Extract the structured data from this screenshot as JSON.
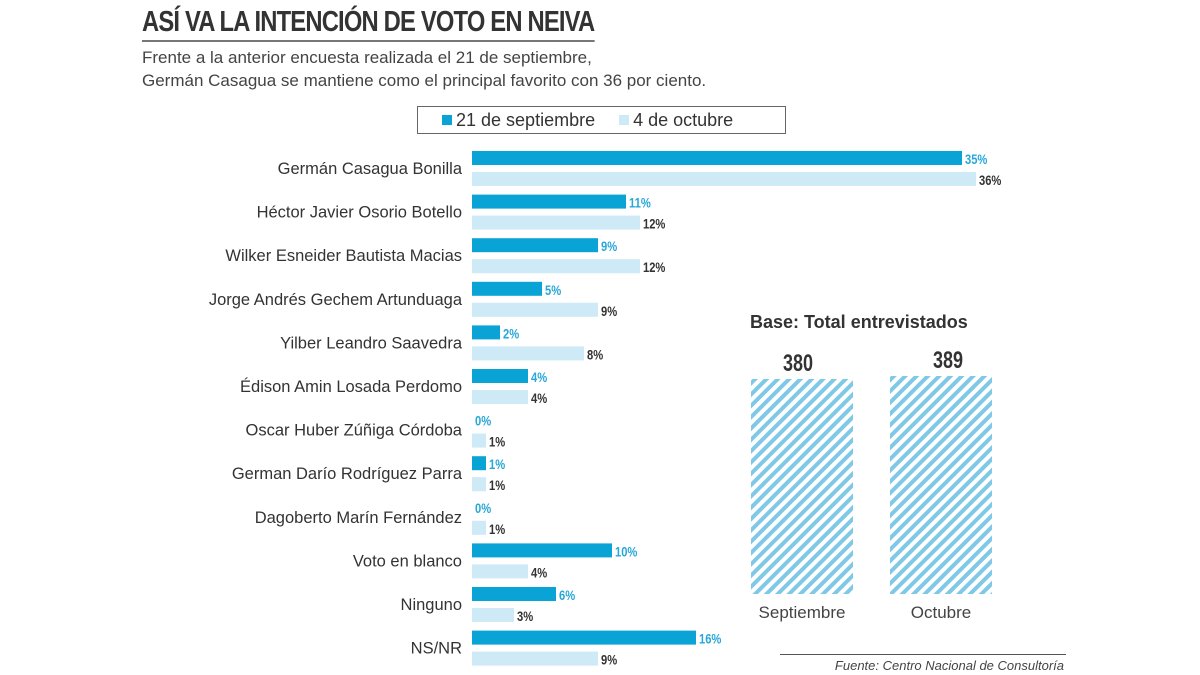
{
  "title": "ASÍ VA LA INTENCIÓN DE VOTO EN NEIVA",
  "subtitle": [
    "Frente a la anterior encuesta realizada el 21 de septiembre,",
    "Germán Casagua se mantiene como el principal favorito con 36 por ciento."
  ],
  "source": "Fuente: Centro Nacional de Consultoría",
  "colors": {
    "sep": "#0aa3d6",
    "oct": "#cdeaf6",
    "sep_label": "#27a8d8",
    "oct_label": "#333333",
    "hatch": "#7fc9e6"
  },
  "chart_data": [
    {
      "type": "bar",
      "orientation": "horizontal",
      "categories": [
        "Germán Casagua Bonilla",
        "Héctor Javier Osorio Botello",
        "Wilker Esneider Bautista Macias",
        "Jorge Andrés Gechem Artunduaga",
        "Yilber Leandro Saavedra",
        "Édison Amin Losada Perdomo",
        "Oscar Huber Zúñiga Córdoba",
        "German Darío Rodríguez Parra",
        "Dagoberto Marín Fernández",
        "Voto en blanco",
        "Ninguno",
        "NS/NR"
      ],
      "series": [
        {
          "name": "21 de septiembre",
          "values": [
            35,
            11,
            9,
            5,
            2,
            4,
            0,
            1,
            0,
            10,
            6,
            16
          ],
          "labels": [
            "35%",
            "11%",
            "9%",
            "5%",
            "2%",
            "4%",
            "0%",
            "1%",
            "0%",
            "10%",
            "6%",
            "16%"
          ]
        },
        {
          "name": "4 de octubre",
          "values": [
            36,
            12,
            12,
            9,
            8,
            4,
            1,
            1,
            1,
            4,
            3,
            9
          ],
          "labels": [
            "36%",
            "12%",
            "12%",
            "9%",
            "8%",
            "4%",
            "1%",
            "1%",
            "1%",
            "4%",
            "3%",
            "9%"
          ]
        }
      ],
      "legend": "top",
      "unit": "%"
    },
    {
      "type": "bar",
      "title": "Base: Total entrevistados",
      "categories": [
        "Septiembre",
        "Octubre"
      ],
      "values": [
        380,
        389
      ],
      "labels": [
        "380",
        "389"
      ]
    }
  ]
}
